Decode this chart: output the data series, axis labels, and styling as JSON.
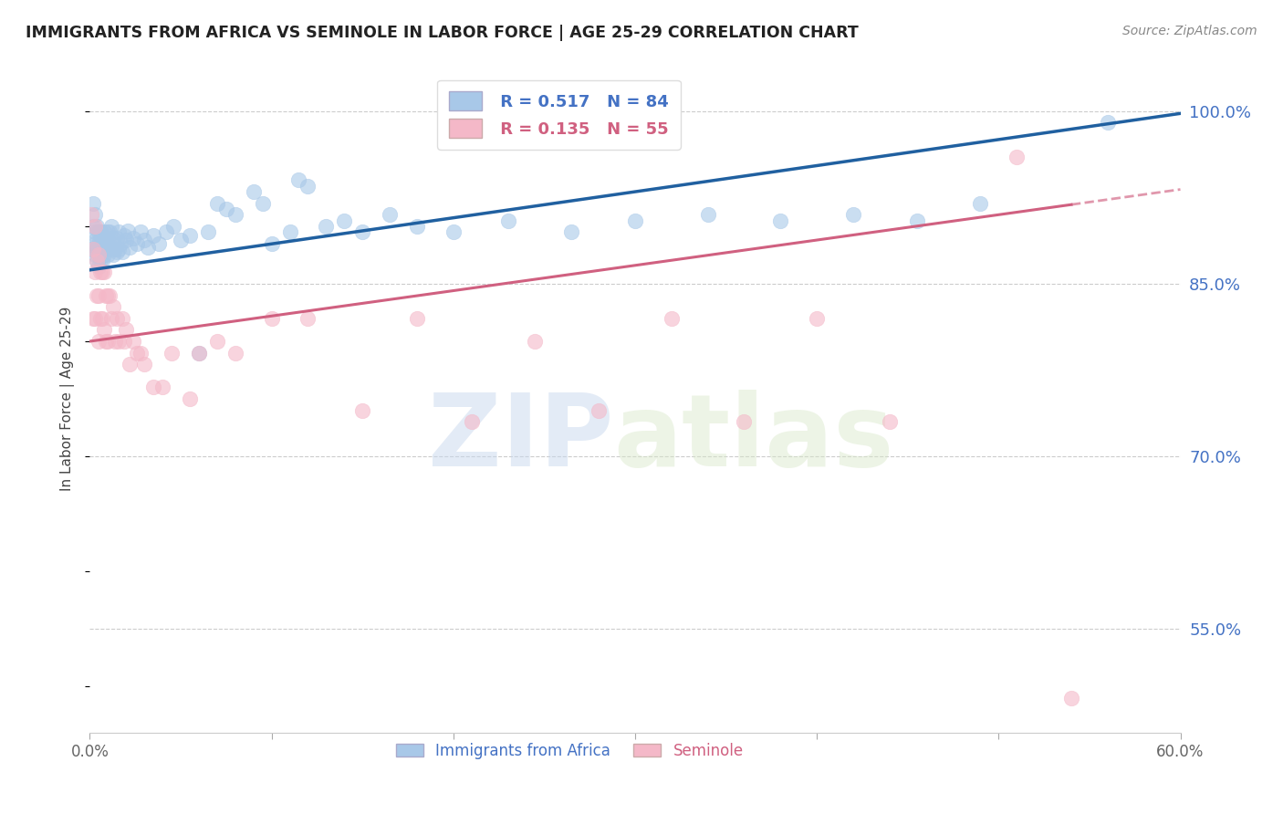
{
  "title": "IMMIGRANTS FROM AFRICA VS SEMINOLE IN LABOR FORCE | AGE 25-29 CORRELATION CHART",
  "source": "Source: ZipAtlas.com",
  "ylabel": "In Labor Force | Age 25-29",
  "xlim": [
    0.0,
    0.6
  ],
  "ylim": [
    0.46,
    1.04
  ],
  "yticks": [
    0.55,
    0.7,
    0.85,
    1.0
  ],
  "ytick_labels": [
    "55.0%",
    "70.0%",
    "85.0%",
    "100.0%"
  ],
  "xticks": [
    0.0,
    0.1,
    0.2,
    0.3,
    0.4,
    0.5,
    0.6
  ],
  "xtick_labels": [
    "0.0%",
    "",
    "",
    "",
    "",
    "",
    "60.0%"
  ],
  "legend_blue_R": "0.517",
  "legend_blue_N": "84",
  "legend_pink_R": "0.135",
  "legend_pink_N": "55",
  "blue_color": "#a8c8e8",
  "pink_color": "#f4b8c8",
  "blue_line_color": "#2060a0",
  "pink_line_color": "#d06080",
  "watermark_zip": "ZIP",
  "watermark_atlas": "atlas",
  "background_color": "#ffffff",
  "blue_points_x": [
    0.001,
    0.002,
    0.002,
    0.003,
    0.003,
    0.003,
    0.003,
    0.004,
    0.004,
    0.004,
    0.004,
    0.005,
    0.005,
    0.005,
    0.005,
    0.006,
    0.006,
    0.006,
    0.006,
    0.007,
    0.007,
    0.007,
    0.008,
    0.008,
    0.008,
    0.009,
    0.009,
    0.01,
    0.01,
    0.01,
    0.011,
    0.011,
    0.012,
    0.012,
    0.013,
    0.013,
    0.014,
    0.015,
    0.015,
    0.016,
    0.016,
    0.017,
    0.018,
    0.019,
    0.02,
    0.021,
    0.022,
    0.024,
    0.026,
    0.028,
    0.03,
    0.032,
    0.035,
    0.038,
    0.042,
    0.046,
    0.05,
    0.055,
    0.06,
    0.065,
    0.07,
    0.075,
    0.08,
    0.09,
    0.095,
    0.1,
    0.11,
    0.115,
    0.12,
    0.13,
    0.14,
    0.15,
    0.165,
    0.18,
    0.2,
    0.23,
    0.265,
    0.3,
    0.34,
    0.38,
    0.42,
    0.455,
    0.49,
    0.56
  ],
  "blue_points_y": [
    0.88,
    0.92,
    0.9,
    0.91,
    0.895,
    0.885,
    0.875,
    0.9,
    0.89,
    0.88,
    0.87,
    0.895,
    0.885,
    0.875,
    0.865,
    0.895,
    0.885,
    0.88,
    0.87,
    0.89,
    0.88,
    0.87,
    0.895,
    0.885,
    0.875,
    0.89,
    0.88,
    0.895,
    0.885,
    0.875,
    0.895,
    0.88,
    0.9,
    0.885,
    0.89,
    0.875,
    0.88,
    0.89,
    0.878,
    0.895,
    0.88,
    0.885,
    0.878,
    0.892,
    0.888,
    0.896,
    0.882,
    0.89,
    0.885,
    0.895,
    0.888,
    0.882,
    0.892,
    0.885,
    0.895,
    0.9,
    0.888,
    0.892,
    0.79,
    0.895,
    0.92,
    0.915,
    0.91,
    0.93,
    0.92,
    0.885,
    0.895,
    0.94,
    0.935,
    0.9,
    0.905,
    0.895,
    0.91,
    0.9,
    0.895,
    0.905,
    0.895,
    0.905,
    0.91,
    0.905,
    0.91,
    0.905,
    0.92,
    0.99
  ],
  "pink_points_x": [
    0.001,
    0.002,
    0.002,
    0.003,
    0.003,
    0.003,
    0.004,
    0.004,
    0.005,
    0.005,
    0.005,
    0.006,
    0.006,
    0.007,
    0.007,
    0.008,
    0.008,
    0.009,
    0.009,
    0.01,
    0.01,
    0.011,
    0.012,
    0.013,
    0.014,
    0.015,
    0.016,
    0.018,
    0.019,
    0.02,
    0.022,
    0.024,
    0.026,
    0.028,
    0.03,
    0.035,
    0.04,
    0.045,
    0.055,
    0.06,
    0.07,
    0.08,
    0.1,
    0.12,
    0.15,
    0.18,
    0.21,
    0.245,
    0.28,
    0.32,
    0.36,
    0.4,
    0.44,
    0.51,
    0.54
  ],
  "pink_points_y": [
    0.91,
    0.88,
    0.82,
    0.9,
    0.86,
    0.82,
    0.87,
    0.84,
    0.875,
    0.84,
    0.8,
    0.86,
    0.82,
    0.86,
    0.82,
    0.86,
    0.81,
    0.84,
    0.8,
    0.84,
    0.8,
    0.84,
    0.82,
    0.83,
    0.8,
    0.82,
    0.8,
    0.82,
    0.8,
    0.81,
    0.78,
    0.8,
    0.79,
    0.79,
    0.78,
    0.76,
    0.76,
    0.79,
    0.75,
    0.79,
    0.8,
    0.79,
    0.82,
    0.82,
    0.74,
    0.82,
    0.73,
    0.8,
    0.74,
    0.82,
    0.73,
    0.82,
    0.73,
    0.96,
    0.49
  ],
  "blue_trend_x0": 0.0,
  "blue_trend_y0": 0.862,
  "blue_trend_x1": 0.6,
  "blue_trend_y1": 0.998,
  "pink_trend_x0": 0.0,
  "pink_trend_y0": 0.8,
  "pink_trend_x1": 0.6,
  "pink_trend_y1": 0.932
}
